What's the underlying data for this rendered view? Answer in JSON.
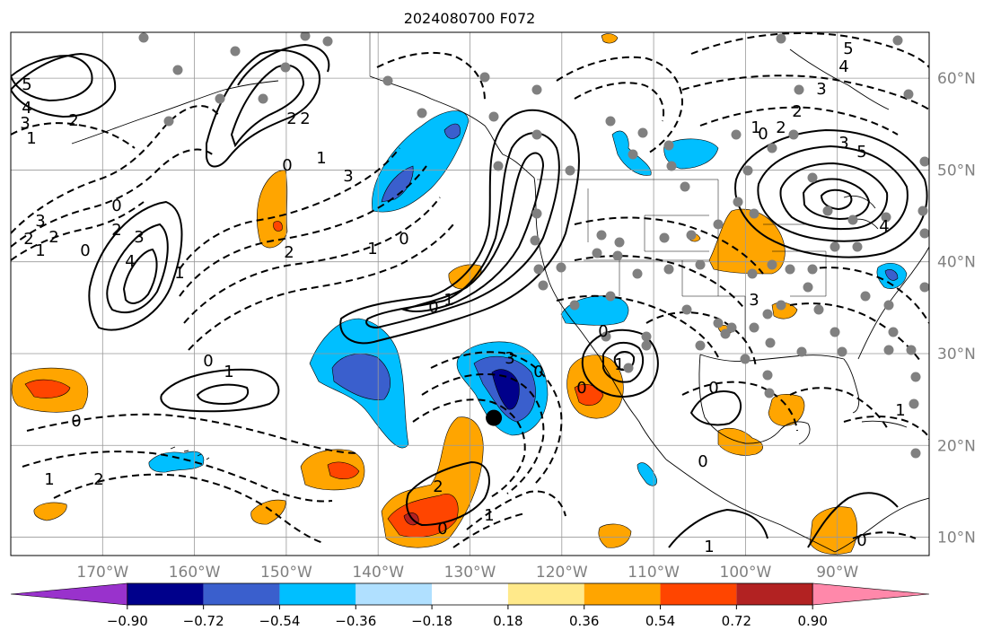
{
  "title": "2024080700 F072",
  "map": {
    "lon_range": [
      -180,
      -80
    ],
    "lat_range": [
      8,
      65
    ],
    "lon_ticks": [
      -170,
      -160,
      -150,
      -140,
      -130,
      -120,
      -110,
      -100,
      -90
    ],
    "lon_tick_labels": [
      "170°W",
      "160°W",
      "150°W",
      "140°W",
      "130°W",
      "120°W",
      "110°W",
      "100°W",
      "90°W"
    ],
    "lat_ticks": [
      10,
      20,
      30,
      40,
      50,
      60
    ],
    "lat_tick_labels": [
      "10°N",
      "20°N",
      "30°N",
      "40°N",
      "50°N",
      "60°N"
    ],
    "grid": true,
    "marker": {
      "lon": -127.4,
      "lat": 23,
      "shape": "filled-circle",
      "color": "#000000"
    }
  },
  "colorbar": {
    "orientation": "horizontal",
    "extend": "both",
    "levels": [
      -0.9,
      -0.72,
      -0.54,
      -0.36,
      -0.18,
      0.18,
      0.36,
      0.54,
      0.72,
      0.9
    ],
    "tick_labels": [
      "−0.90",
      "−0.72",
      "−0.54",
      "−0.36",
      "−0.18",
      "0.18",
      "0.36",
      "0.54",
      "0.72",
      "0.90"
    ],
    "colors": [
      "#9932cc",
      "#00008b",
      "#3a5fcd",
      "#00bfff",
      "#b0e0ff",
      "#ffffff",
      "#ffe98a",
      "#ffa500",
      "#ff4500",
      "#b22222",
      "#ff88aa"
    ]
  },
  "contour_labels": [
    {
      "text": "5"
    },
    {
      "text": "4"
    },
    {
      "text": "3"
    },
    {
      "text": "2"
    },
    {
      "text": "1"
    },
    {
      "text": "2"
    },
    {
      "text": "3"
    },
    {
      "text": "2"
    },
    {
      "text": "1"
    },
    {
      "text": "0"
    },
    {
      "text": "2"
    },
    {
      "text": "3"
    },
    {
      "text": "4"
    },
    {
      "text": "1"
    },
    {
      "text": "0"
    },
    {
      "text": "2"
    },
    {
      "text": "2"
    },
    {
      "text": "3"
    },
    {
      "text": "1"
    },
    {
      "text": "0"
    },
    {
      "text": "2"
    },
    {
      "text": "1"
    },
    {
      "text": "0"
    },
    {
      "text": "1"
    },
    {
      "text": "0"
    },
    {
      "text": "1"
    },
    {
      "text": "0"
    },
    {
      "text": "1"
    },
    {
      "text": "0"
    },
    {
      "text": "2"
    },
    {
      "text": "3"
    },
    {
      "text": "0"
    },
    {
      "text": "1"
    },
    {
      "text": "2"
    },
    {
      "text": "0"
    },
    {
      "text": "0"
    },
    {
      "text": "1"
    },
    {
      "text": "0"
    },
    {
      "text": "5"
    },
    {
      "text": "4"
    },
    {
      "text": "3"
    },
    {
      "text": "2"
    },
    {
      "text": "2"
    },
    {
      "text": "1"
    },
    {
      "text": "0"
    },
    {
      "text": "3"
    },
    {
      "text": "5"
    },
    {
      "text": "4"
    },
    {
      "text": "3"
    },
    {
      "text": "1"
    },
    {
      "text": "0"
    },
    {
      "text": "0"
    },
    {
      "text": "1"
    },
    {
      "text": "0"
    }
  ]
}
